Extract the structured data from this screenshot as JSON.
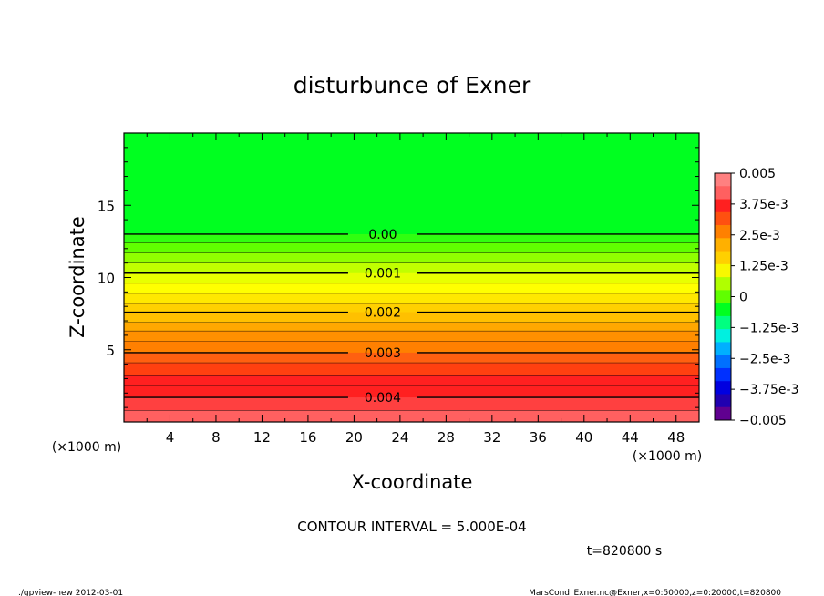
{
  "chart_data": {
    "type": "heatmap",
    "title": "disturbunce of Exner",
    "xlabel": "X-coordinate",
    "ylabel": "Z-coordinate",
    "x_unit": "(×1000 m)",
    "y_unit": "(×1000 m)",
    "xlim": [
      0,
      50
    ],
    "ylim": [
      0,
      20
    ],
    "x_ticks": [
      "4",
      "8",
      "12",
      "16",
      "20",
      "24",
      "28",
      "32",
      "36",
      "40",
      "44",
      "48"
    ],
    "y_ticks": [
      "5",
      "10",
      "15"
    ],
    "contours": [
      {
        "label": "0.00",
        "z": 13.0
      },
      {
        "label": "0.001",
        "z": 10.3
      },
      {
        "label": "0.002",
        "z": 7.6
      },
      {
        "label": "0.003",
        "z": 4.8
      },
      {
        "label": "0.004",
        "z": 1.7
      }
    ],
    "colorbar": {
      "labels": [
        "0.005",
        "3.75e-3",
        "2.5e-3",
        "1.25e-3",
        "0",
        "−1.25e-3",
        "−2.5e-3",
        "−3.75e-3",
        "−0.005"
      ],
      "colors": [
        "#ff8080",
        "#ff6060",
        "#ff2020",
        "#ff5010",
        "#ff8000",
        "#ffb000",
        "#ffd000",
        "#f8f800",
        "#b0ff00",
        "#60ff00",
        "#00ff20",
        "#00ff80",
        "#00f0e0",
        "#00b0ff",
        "#0070ff",
        "#0030ff",
        "#0000e0",
        "#2000b0",
        "#600090"
      ]
    },
    "bands": [
      {
        "z_top": 20.0,
        "color": "#00ff20"
      },
      {
        "z_top": 13.0,
        "color": "#30ff10"
      },
      {
        "z_top": 12.4,
        "color": "#60ff00"
      },
      {
        "z_top": 11.7,
        "color": "#90ff00"
      },
      {
        "z_top": 11.0,
        "color": "#c0ff00"
      },
      {
        "z_top": 10.3,
        "color": "#e8ff00"
      },
      {
        "z_top": 9.6,
        "color": "#ffff00"
      },
      {
        "z_top": 8.9,
        "color": "#ffe800"
      },
      {
        "z_top": 8.2,
        "color": "#ffd000"
      },
      {
        "z_top": 7.6,
        "color": "#ffc000"
      },
      {
        "z_top": 6.9,
        "color": "#ffa800"
      },
      {
        "z_top": 6.3,
        "color": "#ff9000"
      },
      {
        "z_top": 5.6,
        "color": "#ff8000"
      },
      {
        "z_top": 4.8,
        "color": "#ff6010"
      },
      {
        "z_top": 4.1,
        "color": "#ff4010"
      },
      {
        "z_top": 3.2,
        "color": "#ff2020"
      },
      {
        "z_top": 2.5,
        "color": "#ff2020"
      },
      {
        "z_top": 1.7,
        "color": "#ff4040"
      },
      {
        "z_top": 0.8,
        "color": "#ff6060"
      }
    ]
  },
  "annotations": {
    "contour_interval": "CONTOUR INTERVAL = 5.000E-04",
    "time": "t=820800 s",
    "footer_left": "./gpview-new  2012-03-01",
    "footer_right": "MarsCond_Exner.nc@Exner,x=0:50000,z=0:20000,t=820800"
  }
}
